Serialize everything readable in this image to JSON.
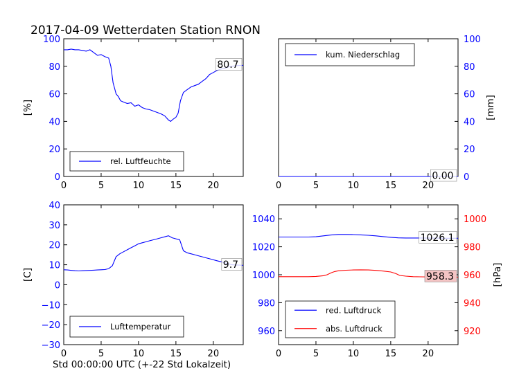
{
  "title": "2017-04-09 Wetterdaten Station RNON",
  "xlabel": "Std 00:00:00 UTC (+-22 Std Lokalzeit)",
  "colors": {
    "blue": "#0000ff",
    "red": "#ff0000",
    "label_box_red": "#f4c4c4"
  },
  "chart_data": [
    {
      "type": "line",
      "panel": "top-left",
      "xlim": [
        0,
        24
      ],
      "ylim": [
        0,
        100
      ],
      "xticks": [
        "0",
        "5",
        "10",
        "15",
        "20"
      ],
      "yticks": [
        "0",
        "20",
        "40",
        "60",
        "80",
        "100"
      ],
      "ylabel": "[%]",
      "legend_position": "lower-left",
      "grid": false,
      "series": [
        {
          "name": "rel. Luftfeuchte",
          "color": "#0000ff",
          "x": [
            0,
            0.5,
            1,
            1.5,
            2,
            2.5,
            3,
            3.5,
            4,
            4.5,
            5,
            5.5,
            6,
            6.3,
            6.6,
            6.8,
            7,
            7.3,
            7.6,
            8,
            8.5,
            9,
            9.5,
            10,
            10.5,
            11,
            11.5,
            12,
            12.5,
            13,
            13.5,
            14,
            14.3,
            14.6,
            15,
            15.3,
            15.6,
            16,
            16.5,
            17,
            17.5,
            18,
            18.5,
            19,
            19.5,
            20,
            20.5,
            21,
            21.5,
            22,
            22.5,
            23,
            23.5,
            24
          ],
          "values": [
            92,
            92,
            92.5,
            92,
            92,
            91.5,
            91,
            92,
            90,
            88,
            88.5,
            87,
            86,
            80,
            68,
            64,
            60,
            58,
            55,
            54,
            53,
            53.5,
            51,
            52,
            50,
            49,
            48.5,
            47.5,
            46.5,
            45.5,
            44,
            41,
            40,
            41.5,
            43,
            46,
            55,
            61,
            63,
            65,
            66,
            67,
            69,
            71,
            74,
            75.5,
            77,
            78,
            78.5,
            79.5,
            80,
            80.5,
            80.6,
            80.7
          ]
        }
      ],
      "last_value_label": "80.7"
    },
    {
      "type": "line",
      "panel": "top-right",
      "xlim": [
        0,
        24
      ],
      "ylim": [
        0,
        100
      ],
      "xticks": [
        "0",
        "5",
        "10",
        "15",
        "20"
      ],
      "yticks": [
        "0",
        "20",
        "40",
        "60",
        "80",
        "100"
      ],
      "ylabel": "[mm]",
      "legend_position": "upper-left",
      "grid": false,
      "series": [
        {
          "name": "kum. Niederschlag",
          "color": "#0000ff",
          "x": [
            0,
            24
          ],
          "values": [
            0,
            0
          ]
        }
      ],
      "last_value_label": "0.00"
    },
    {
      "type": "line",
      "panel": "bottom-left",
      "xlim": [
        0,
        24
      ],
      "ylim": [
        -30,
        40
      ],
      "xticks": [
        "0",
        "5",
        "10",
        "15",
        "20"
      ],
      "yticks": [
        "−30",
        "−20",
        "−10",
        "0",
        "10",
        "20",
        "30",
        "40"
      ],
      "ylabel": "[C]",
      "legend_position": "lower-left",
      "grid": false,
      "series": [
        {
          "name": "Lufttemperatur",
          "color": "#0000ff",
          "x": [
            0,
            0.5,
            1,
            1.5,
            2,
            2.5,
            3,
            3.5,
            4,
            4.5,
            5,
            5.5,
            6,
            6.5,
            7,
            7.5,
            8,
            8.5,
            9,
            9.5,
            10,
            10.5,
            11,
            11.5,
            12,
            12.5,
            13,
            13.5,
            14,
            14.5,
            15,
            15.5,
            16,
            16.5,
            17,
            17.5,
            18,
            18.5,
            19,
            19.5,
            20,
            20.5,
            21,
            21.5,
            22,
            22.5,
            23,
            23.5,
            24
          ],
          "values": [
            7.5,
            7.4,
            7.2,
            7.0,
            6.9,
            7.0,
            7.1,
            7.2,
            7.3,
            7.4,
            7.5,
            7.6,
            8.0,
            9.5,
            14,
            15.5,
            16.5,
            17.5,
            18.5,
            19.5,
            20.5,
            21,
            21.5,
            22,
            22.5,
            23,
            23.5,
            24,
            24.5,
            23.5,
            23,
            22.5,
            17,
            16,
            15.5,
            15,
            14.5,
            14,
            13.5,
            13,
            12.5,
            12,
            11.5,
            11,
            10.5,
            10,
            9.9,
            9.8,
            9.7
          ]
        }
      ],
      "last_value_label": "9.7"
    },
    {
      "type": "line",
      "panel": "bottom-right",
      "xlim": [
        0,
        24
      ],
      "ylim": [
        950,
        1050
      ],
      "y2lim": [
        910,
        1010
      ],
      "xticks": [
        "0",
        "5",
        "10",
        "15",
        "20"
      ],
      "yticks": [
        "960",
        "980",
        "1000",
        "1020",
        "1040"
      ],
      "y2ticks": [
        "920",
        "940",
        "960",
        "980",
        "1000"
      ],
      "ylabel": "",
      "y2label": "[hPa]",
      "legend_position": "lower-left",
      "grid": false,
      "series": [
        {
          "name": "red. Luftdruck",
          "color": "#0000ff",
          "axis": "left",
          "x": [
            0,
            2,
            4,
            5,
            6,
            7,
            8,
            9,
            10,
            11,
            12,
            13,
            14,
            15,
            16,
            17,
            18,
            19,
            20,
            21,
            22,
            23,
            24
          ],
          "values": [
            1027.0,
            1027.0,
            1027.0,
            1027.2,
            1027.8,
            1028.4,
            1028.8,
            1028.8,
            1028.7,
            1028.5,
            1028.2,
            1027.8,
            1027.3,
            1026.8,
            1026.4,
            1026.3,
            1026.3,
            1026.3,
            1026.2,
            1026.2,
            1026.1,
            1026.1,
            1026.1
          ]
        },
        {
          "name": "abs. Luftdruck",
          "color": "#ff0000",
          "axis": "right",
          "x": [
            0,
            2,
            4,
            5,
            6,
            6.5,
            7,
            7.5,
            8,
            9,
            10,
            11,
            12,
            13,
            14,
            15,
            15.7,
            16.2,
            17,
            18,
            19,
            20,
            21,
            22,
            23,
            24
          ],
          "values": [
            958.6,
            958.6,
            958.6,
            958.8,
            959.3,
            960.0,
            961.3,
            962.3,
            962.8,
            963.2,
            963.4,
            963.5,
            963.4,
            963.1,
            962.6,
            962.0,
            960.8,
            959.5,
            959.0,
            958.6,
            958.5,
            958.4,
            958.4,
            958.3,
            958.3,
            958.3
          ]
        }
      ],
      "last_value_labels": [
        "1026.1",
        "958.3"
      ]
    }
  ]
}
